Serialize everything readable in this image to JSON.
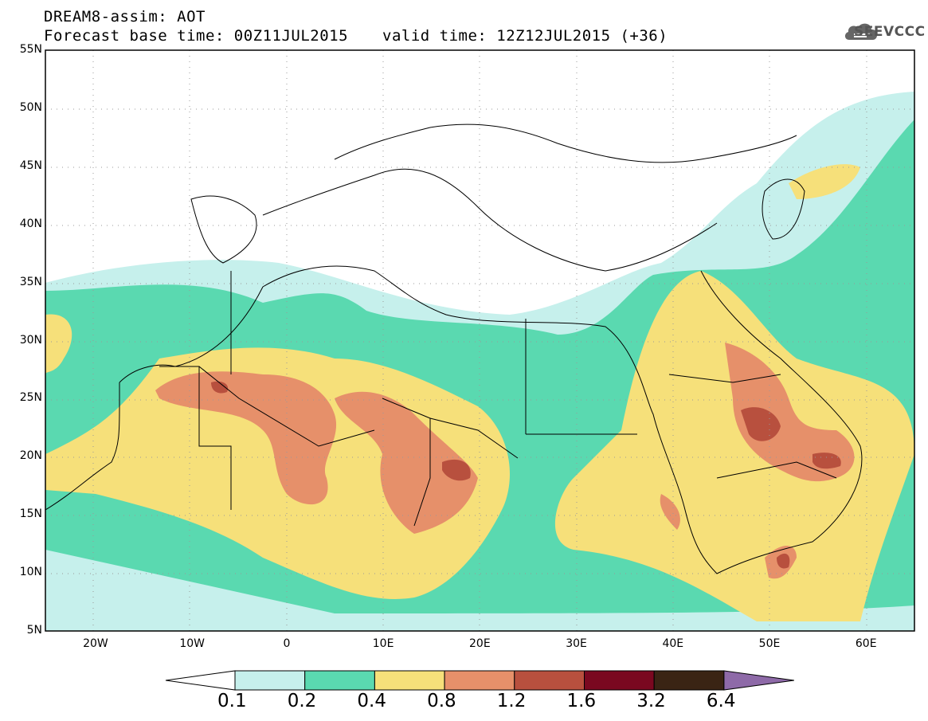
{
  "header": {
    "title": "DREAM8-assim: AOT",
    "base_time": "Forecast base time: 00Z11JUL2015",
    "valid_time": "valid time: 12Z12JUL2015 (+36)"
  },
  "logo": {
    "text": "SEEVCCC",
    "icon": "cloud-icon"
  },
  "map": {
    "lat_labels": [
      "5N",
      "10N",
      "15N",
      "20N",
      "25N",
      "30N",
      "35N",
      "40N",
      "45N",
      "50N",
      "55N"
    ],
    "lon_labels": [
      "20W",
      "10W",
      "0",
      "10E",
      "20E",
      "30E",
      "40E",
      "50E",
      "60E"
    ],
    "extent": {
      "lon": [
        -25,
        65
      ],
      "lat": [
        5,
        55
      ]
    },
    "grid": true
  },
  "legend": {
    "labels": [
      "0.1",
      "0.2",
      "0.4",
      "0.8",
      "1.2",
      "1.6",
      "3.2",
      "6.4"
    ],
    "colors": [
      "#ffffff",
      "#c6f0ec",
      "#5ad9b0",
      "#f6e07a",
      "#e6906a",
      "#b8503e",
      "#7a0820",
      "#3a2414",
      "#8e6aa8"
    ]
  }
}
